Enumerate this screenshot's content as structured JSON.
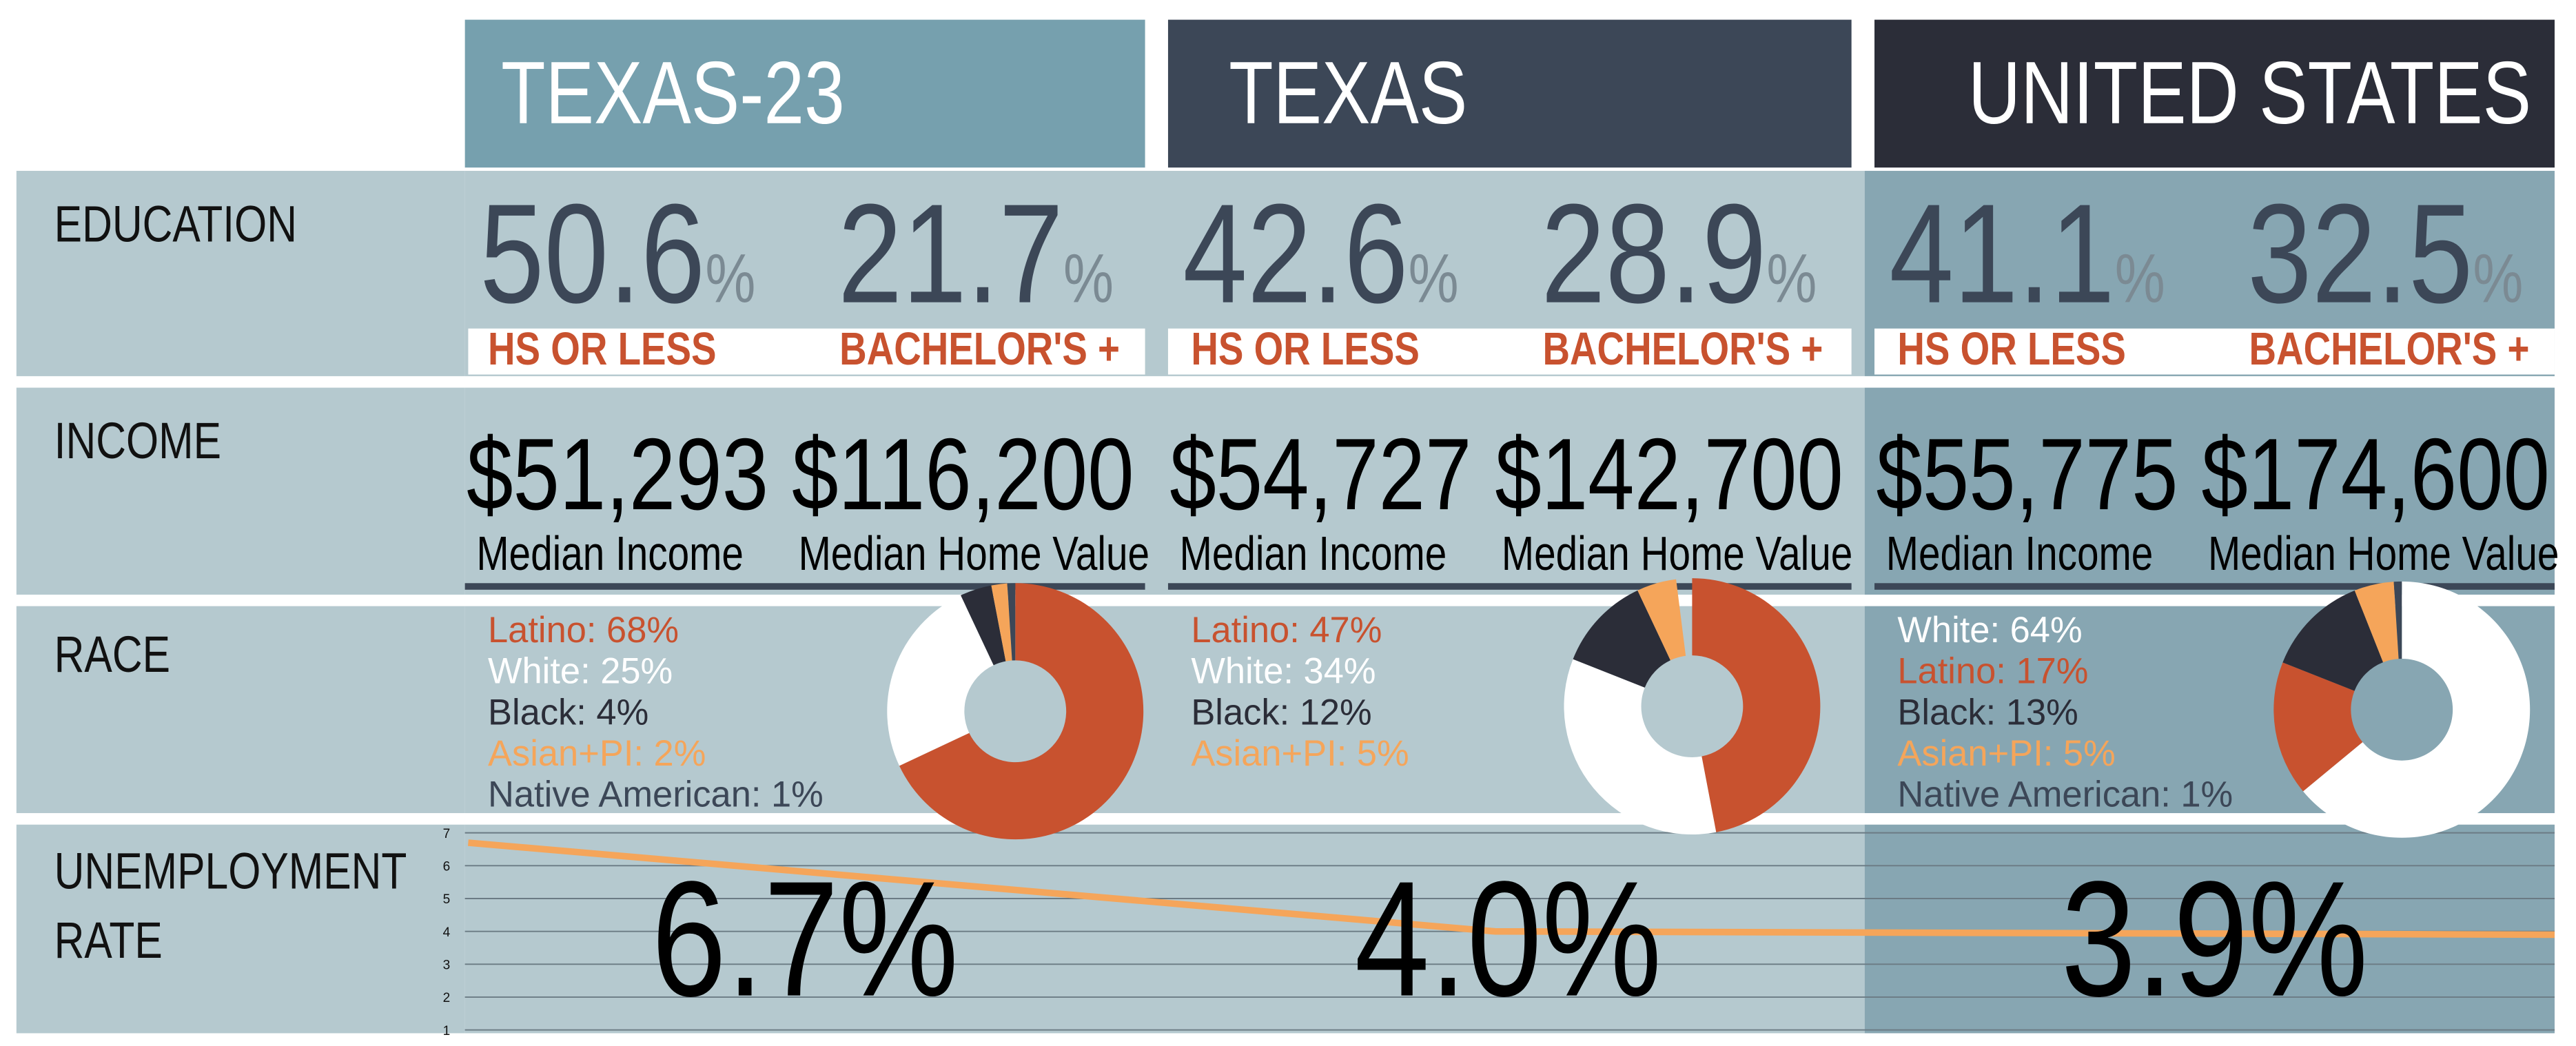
{
  "columns": [
    {
      "title": "TEXAS-23",
      "education": [
        {
          "value": 50.6,
          "unit": "%",
          "label": "HS OR LESS"
        },
        {
          "value": 21.7,
          "unit": "%",
          "label": "BACHELOR'S +"
        }
      ],
      "income": [
        {
          "value": "$51,293",
          "label": "Median Income"
        },
        {
          "value": "$116,200",
          "label": "Median Home Value"
        }
      ],
      "race": [
        {
          "label": "Latino: 68%",
          "value": 68,
          "color": "#c8522f"
        },
        {
          "label": "White: 25%",
          "value": 25,
          "color": "#ffffff"
        },
        {
          "label": "Black: 4%",
          "value": 4,
          "color": "#2b2d38"
        },
        {
          "label": "Asian+PI: 2%",
          "value": 2,
          "color": "#f5a55a"
        },
        {
          "label": "Native American: 1%",
          "value": 1,
          "color": "#3c4757"
        }
      ],
      "unemployment": {
        "value": 6.7,
        "value_label": "6.7%"
      }
    },
    {
      "title": "TEXAS",
      "education": [
        {
          "value": 42.6,
          "unit": "%",
          "label": "HS OR LESS"
        },
        {
          "value": 28.9,
          "unit": "%",
          "label": "BACHELOR'S +"
        }
      ],
      "income": [
        {
          "value": "$54,727",
          "label": "Median Income"
        },
        {
          "value": "$142,700",
          "label": "Median Home Value"
        }
      ],
      "race": [
        {
          "label": "Latino: 47%",
          "value": 47,
          "color": "#c8522f"
        },
        {
          "label": "White: 34%",
          "value": 34,
          "color": "#ffffff"
        },
        {
          "label": "Black: 12%",
          "value": 12,
          "color": "#2b2d38"
        },
        {
          "label": "Asian+PI: 5%",
          "value": 5,
          "color": "#f5a55a"
        }
      ],
      "unemployment": {
        "value": 4.0,
        "value_label": "4.0%"
      }
    },
    {
      "title": "UNITED STATES",
      "education": [
        {
          "value": 41.1,
          "unit": "%",
          "label": "HS OR LESS"
        },
        {
          "value": 32.5,
          "unit": "%",
          "label": "BACHELOR'S +"
        }
      ],
      "income": [
        {
          "value": "$55,775",
          "label": "Median Income"
        },
        {
          "value": "$174,600",
          "label": "Median Home Value"
        }
      ],
      "race": [
        {
          "label": "White: 64%",
          "value": 64,
          "color": "#ffffff"
        },
        {
          "label": "Latino: 17%",
          "value": 17,
          "color": "#c8522f"
        },
        {
          "label": "Black: 13%",
          "value": 13,
          "color": "#2b2d38"
        },
        {
          "label": "Asian+PI: 5%",
          "value": 5,
          "color": "#f5a55a"
        },
        {
          "label": "Native American: 1%",
          "value": 1,
          "color": "#3c4757"
        }
      ],
      "unemployment": {
        "value": 3.9,
        "value_label": "3.9%"
      }
    }
  ],
  "row_labels": [
    "EDUCATION",
    "INCOME",
    "RACE",
    "UNEMPLOYMENT RATE"
  ],
  "unemployment_axis": {
    "ylim": [
      1,
      7
    ],
    "yticks": [
      1,
      2,
      3,
      4,
      5,
      6,
      7
    ],
    "color": "#f5a55a"
  }
}
